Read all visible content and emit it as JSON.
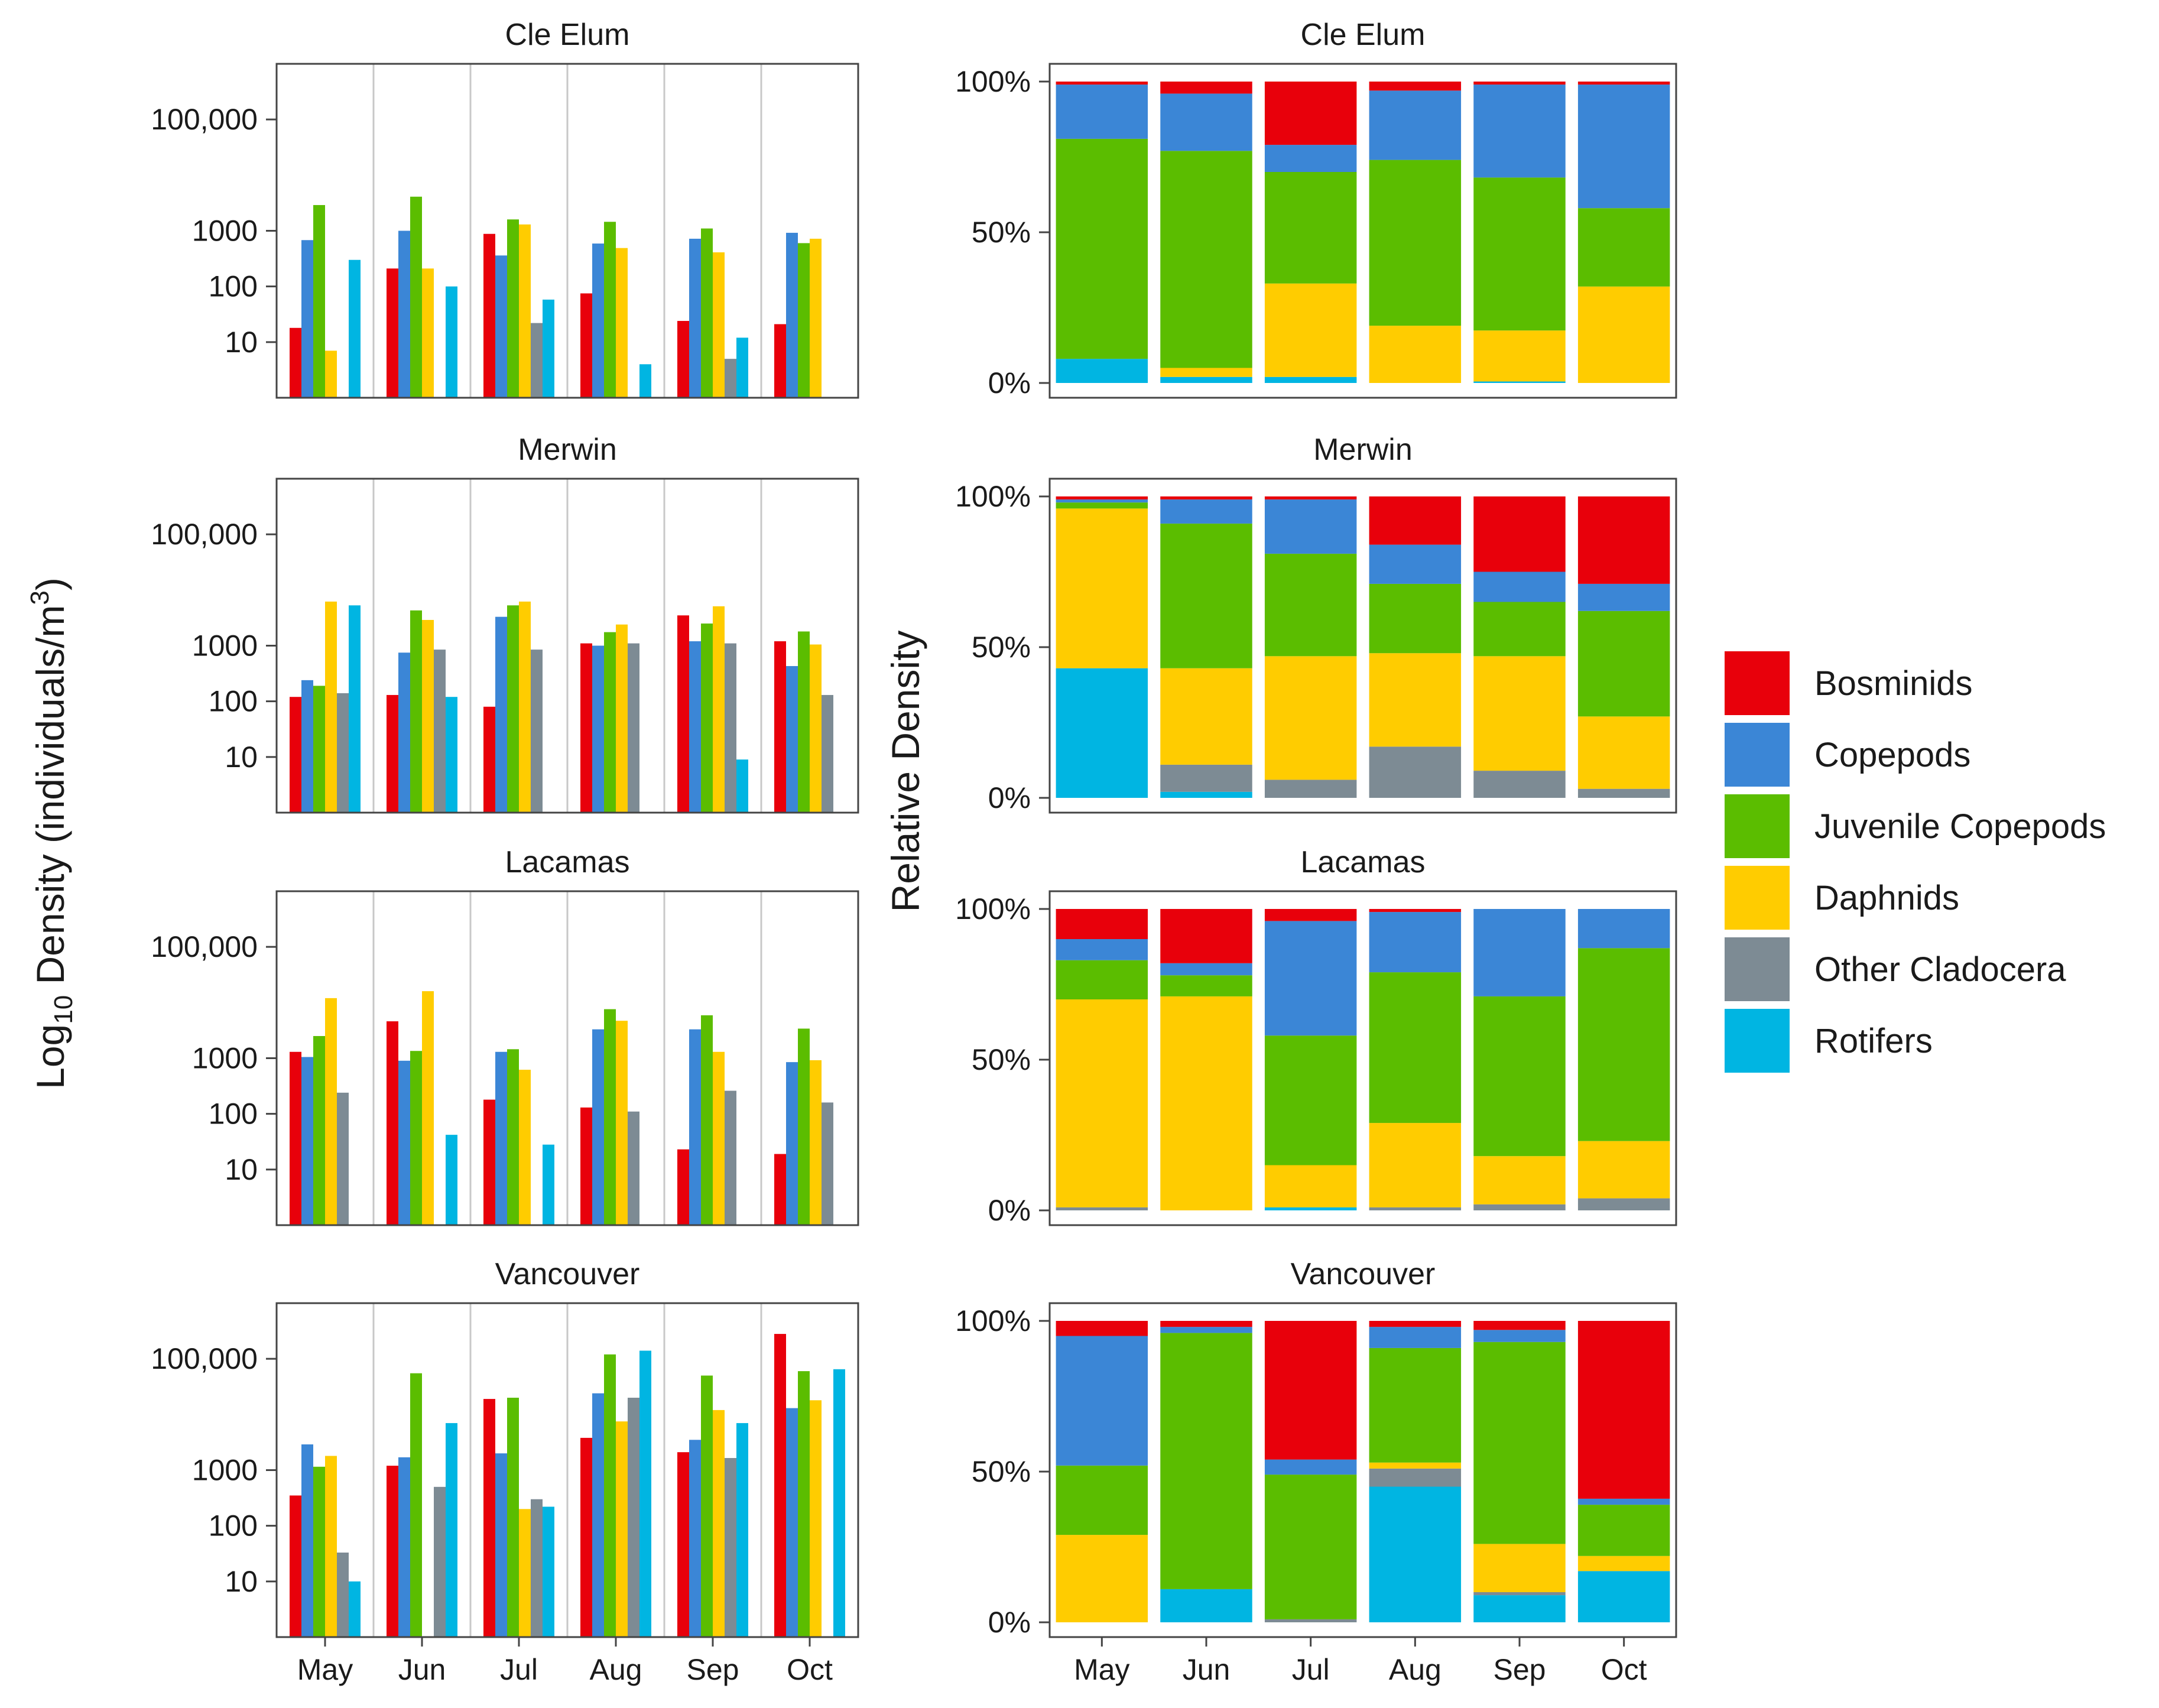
{
  "figure": {
    "left_ylabel": "Log10 Density (individuals/m3)",
    "left_ylabel_base": "Log",
    "left_ylabel_sub": "10",
    "left_ylabel_rest": " Density (individuals/m",
    "left_ylabel_sup": "3",
    "left_ylabel_close": ")",
    "right_ylabel": "Relative Density"
  },
  "legend": {
    "items": [
      {
        "label": "Bosminids",
        "color": "#e8000b"
      },
      {
        "label": "Copepods",
        "color": "#3b86d6"
      },
      {
        "label": "Juvenile Copepods",
        "color": "#5bbd00"
      },
      {
        "label": "Daphnids",
        "color": "#ffcc00"
      },
      {
        "label": "Other Cladocera",
        "color": "#7d8b94"
      },
      {
        "label": "Rotifers",
        "color": "#00b5e2"
      }
    ]
  },
  "chart_data": [
    {
      "type": "bar",
      "panel": "absolute",
      "title": "Cle Elum",
      "categories": [
        "May",
        "Jun",
        "Jul",
        "Aug",
        "Sep",
        "Oct"
      ],
      "yscale": "log10",
      "ylim": [
        1,
        1000000
      ],
      "yticks": [
        10,
        100,
        1000,
        100000
      ],
      "ytick_labels": [
        "10",
        "100",
        "1000",
        "100,000"
      ],
      "show_xlabels": false,
      "series": [
        {
          "name": "Bosminids",
          "values": [
            18,
            210,
            880,
            75,
            24,
            21
          ]
        },
        {
          "name": "Copepods",
          "values": [
            680,
            1000,
            360,
            590,
            720,
            920
          ]
        },
        {
          "name": "Juvenile Copepods",
          "values": [
            2900,
            4100,
            1600,
            1450,
            1100,
            600
          ]
        },
        {
          "name": "Daphnids",
          "values": [
            7,
            210,
            1300,
            490,
            410,
            720
          ]
        },
        {
          "name": "Other Cladocera",
          "values": [
            null,
            null,
            22,
            null,
            5,
            null
          ]
        },
        {
          "name": "Rotifers",
          "values": [
            300,
            100,
            58,
            4,
            12,
            null
          ]
        }
      ]
    },
    {
      "type": "bar",
      "panel": "absolute",
      "title": "Merwin",
      "categories": [
        "May",
        "Jun",
        "Jul",
        "Aug",
        "Sep",
        "Oct"
      ],
      "yscale": "log10",
      "ylim": [
        1,
        1000000
      ],
      "yticks": [
        10,
        100,
        1000,
        100000
      ],
      "ytick_labels": [
        "10",
        "100",
        "1000",
        "100,000"
      ],
      "show_xlabels": false,
      "series": [
        {
          "name": "Bosminids",
          "values": [
            120,
            130,
            80,
            1100,
            3500,
            1200
          ]
        },
        {
          "name": "Copepods",
          "values": [
            240,
            750,
            3300,
            1000,
            1200,
            430
          ]
        },
        {
          "name": "Juvenile Copepods",
          "values": [
            190,
            4300,
            5300,
            1750,
            2500,
            1800
          ]
        },
        {
          "name": "Daphnids",
          "values": [
            6200,
            2900,
            6200,
            2400,
            5100,
            1050
          ]
        },
        {
          "name": "Other Cladocera",
          "values": [
            140,
            850,
            850,
            1100,
            1100,
            130
          ]
        },
        {
          "name": "Rotifers",
          "values": [
            5300,
            120,
            null,
            null,
            9,
            null
          ]
        }
      ]
    },
    {
      "type": "bar",
      "panel": "absolute",
      "title": "Lacamas",
      "categories": [
        "May",
        "Jun",
        "Jul",
        "Aug",
        "Sep",
        "Oct"
      ],
      "yscale": "log10",
      "ylim": [
        1,
        1000000
      ],
      "yticks": [
        10,
        100,
        1000,
        100000
      ],
      "ytick_labels": [
        "10",
        "100",
        "1000",
        "100,000"
      ],
      "show_xlabels": false,
      "series": [
        {
          "name": "Bosminids",
          "values": [
            1300,
            4600,
            180,
            130,
            23,
            19
          ]
        },
        {
          "name": "Copepods",
          "values": [
            1050,
            900,
            1300,
            3300,
            3300,
            850
          ]
        },
        {
          "name": "Juvenile Copepods",
          "values": [
            2500,
            1350,
            1450,
            7600,
            5900,
            3400
          ]
        },
        {
          "name": "Daphnids",
          "values": [
            12000,
            16000,
            620,
            4700,
            1300,
            920
          ]
        },
        {
          "name": "Other Cladocera",
          "values": [
            240,
            null,
            null,
            110,
            260,
            160
          ]
        },
        {
          "name": "Rotifers",
          "values": [
            null,
            42,
            28,
            null,
            null,
            null
          ]
        }
      ]
    },
    {
      "type": "bar",
      "panel": "absolute",
      "title": "Vancouver",
      "categories": [
        "May",
        "Jun",
        "Jul",
        "Aug",
        "Sep",
        "Oct"
      ],
      "yscale": "log10",
      "ylim": [
        1,
        1000000
      ],
      "yticks": [
        10,
        100,
        1000,
        100000
      ],
      "ytick_labels": [
        "10",
        "100",
        "1000",
        "100,000"
      ],
      "show_xlabels": true,
      "series": [
        {
          "name": "Bosminids",
          "values": [
            350,
            1200,
            19000,
            3800,
            2100,
            280000
          ]
        },
        {
          "name": "Copepods",
          "values": [
            2900,
            1700,
            2000,
            24000,
            3500,
            13000
          ]
        },
        {
          "name": "Juvenile Copepods",
          "values": [
            1150,
            55000,
            20000,
            120000,
            50000,
            60000
          ]
        },
        {
          "name": "Daphnids",
          "values": [
            1800,
            null,
            200,
            7500,
            12000,
            18000
          ]
        },
        {
          "name": "Other Cladocera",
          "values": [
            33,
            500,
            300,
            20000,
            1650,
            null
          ]
        },
        {
          "name": "Rotifers",
          "values": [
            10,
            7000,
            220,
            140000,
            7000,
            65000
          ]
        }
      ]
    },
    {
      "type": "stacked_bar",
      "panel": "relative",
      "title": "Cle Elum",
      "categories": [
        "May",
        "Jun",
        "Jul",
        "Aug",
        "Sep",
        "Oct"
      ],
      "ylim": [
        0,
        100
      ],
      "yticks": [
        0,
        50,
        100
      ],
      "ytick_labels": [
        "0%",
        "50%",
        "100%"
      ],
      "show_xlabels": false,
      "series": [
        {
          "name": "Rotifers",
          "values": [
            8,
            2,
            2,
            0,
            0.5,
            0
          ]
        },
        {
          "name": "Other Cladocera",
          "values": [
            0,
            0,
            0,
            0,
            0,
            0
          ]
        },
        {
          "name": "Daphnids",
          "values": [
            0,
            3,
            31,
            19,
            17,
            32
          ]
        },
        {
          "name": "Juvenile Copepods",
          "values": [
            73,
            72,
            37,
            55,
            51,
            26
          ]
        },
        {
          "name": "Copepods",
          "values": [
            18,
            19,
            9,
            23,
            31,
            41
          ]
        },
        {
          "name": "Bosminids",
          "values": [
            1,
            4,
            21,
            3,
            1,
            1
          ]
        }
      ]
    },
    {
      "type": "stacked_bar",
      "panel": "relative",
      "title": "Merwin",
      "categories": [
        "May",
        "Jun",
        "Jul",
        "Aug",
        "Sep",
        "Oct"
      ],
      "ylim": [
        0,
        100
      ],
      "yticks": [
        0,
        50,
        100
      ],
      "ytick_labels": [
        "0%",
        "50%",
        "100%"
      ],
      "show_xlabels": false,
      "series": [
        {
          "name": "Rotifers",
          "values": [
            43,
            2,
            0,
            0,
            0,
            0
          ]
        },
        {
          "name": "Other Cladocera",
          "values": [
            0,
            9,
            6,
            17,
            9,
            3
          ]
        },
        {
          "name": "Daphnids",
          "values": [
            53,
            32,
            41,
            31,
            38,
            24
          ]
        },
        {
          "name": "Juvenile Copepods",
          "values": [
            2,
            48,
            34,
            23,
            18,
            35
          ]
        },
        {
          "name": "Copepods",
          "values": [
            1,
            8,
            18,
            13,
            10,
            9
          ]
        },
        {
          "name": "Bosminids",
          "values": [
            1,
            1,
            1,
            16,
            25,
            29
          ]
        }
      ]
    },
    {
      "type": "stacked_bar",
      "panel": "relative",
      "title": "Lacamas",
      "categories": [
        "May",
        "Jun",
        "Jul",
        "Aug",
        "Sep",
        "Oct"
      ],
      "ylim": [
        0,
        100
      ],
      "yticks": [
        0,
        50,
        100
      ],
      "ytick_labels": [
        "0%",
        "50%",
        "100%"
      ],
      "show_xlabels": false,
      "series": [
        {
          "name": "Rotifers",
          "values": [
            0,
            0,
            1,
            0,
            0,
            0
          ]
        },
        {
          "name": "Other Cladocera",
          "values": [
            1,
            0,
            0,
            1,
            2,
            4
          ]
        },
        {
          "name": "Daphnids",
          "values": [
            69,
            71,
            14,
            28,
            16,
            19
          ]
        },
        {
          "name": "Juvenile Copepods",
          "values": [
            13,
            7,
            43,
            50,
            53,
            64
          ]
        },
        {
          "name": "Copepods",
          "values": [
            7,
            4,
            38,
            20,
            29,
            13
          ]
        },
        {
          "name": "Bosminids",
          "values": [
            10,
            18,
            4,
            1,
            0,
            0
          ]
        }
      ]
    },
    {
      "type": "stacked_bar",
      "panel": "relative",
      "title": "Vancouver",
      "categories": [
        "May",
        "Jun",
        "Jul",
        "Aug",
        "Sep",
        "Oct"
      ],
      "ylim": [
        0,
        100
      ],
      "yticks": [
        0,
        50,
        100
      ],
      "ytick_labels": [
        "0%",
        "50%",
        "100%"
      ],
      "show_xlabels": true,
      "series": [
        {
          "name": "Rotifers",
          "values": [
            0,
            11,
            0,
            45,
            9,
            17
          ]
        },
        {
          "name": "Other Cladocera",
          "values": [
            0,
            0,
            1,
            6,
            1,
            0
          ]
        },
        {
          "name": "Daphnids",
          "values": [
            29,
            0,
            0,
            2,
            16,
            5
          ]
        },
        {
          "name": "Juvenile Copepods",
          "values": [
            23,
            85,
            48,
            38,
            67,
            17
          ]
        },
        {
          "name": "Copepods",
          "values": [
            43,
            2,
            5,
            7,
            4,
            2
          ]
        },
        {
          "name": "Bosminids",
          "values": [
            5,
            2,
            46,
            2,
            3,
            59
          ]
        }
      ]
    }
  ]
}
